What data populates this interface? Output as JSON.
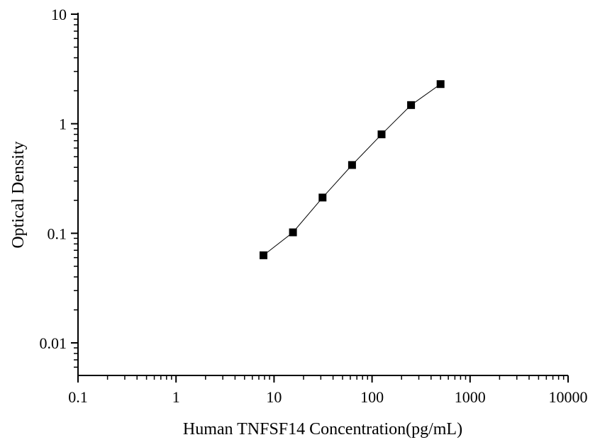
{
  "chart_data": {
    "type": "scatter",
    "xlabel": "Human TNFSF14 Concentration(pg/mL)",
    "ylabel": "Optical Density",
    "xscale": "log",
    "yscale": "log",
    "xlim": [
      0.1,
      10000
    ],
    "ylim": [
      0.005,
      10
    ],
    "x_ticks": [
      0.1,
      1,
      10,
      100,
      1000,
      10000
    ],
    "x_tick_labels": [
      "0.1",
      "1",
      "10",
      "100",
      "1000",
      "10000"
    ],
    "y_ticks": [
      0.01,
      0.1,
      1,
      10
    ],
    "y_tick_labels": [
      "0.01",
      "0.1",
      "1",
      "10"
    ],
    "grid": false,
    "legend": "none",
    "marker": "square",
    "line_color": "#000000",
    "marker_color": "#000000",
    "series": [
      {
        "x": [
          7.8,
          15.6,
          31.25,
          62.5,
          125,
          250,
          500
        ],
        "y": [
          0.063,
          0.102,
          0.212,
          0.42,
          0.8,
          1.48,
          2.3
        ]
      }
    ]
  }
}
